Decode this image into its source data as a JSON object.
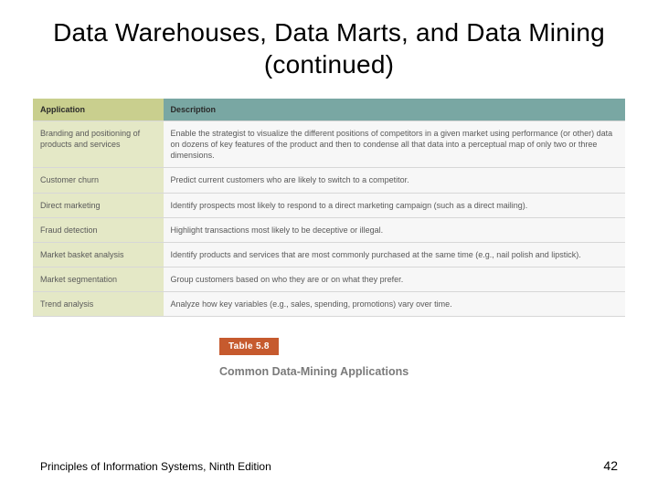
{
  "title": "Data Warehouses, Data Marts, and Data Mining (continued)",
  "columns": {
    "app": "Application",
    "desc": "Description"
  },
  "rows": [
    {
      "app": "Branding and positioning of products and services",
      "desc": "Enable the strategist to visualize the different positions of competitors in a given market using performance (or other) data on dozens of key features of the product and then to condense all that data into a perceptual map of only two or three dimensions."
    },
    {
      "app": "Customer churn",
      "desc": "Predict current customers who are likely to switch to a competitor."
    },
    {
      "app": "Direct marketing",
      "desc": "Identify prospects most likely to respond to a direct marketing campaign (such as a direct mailing)."
    },
    {
      "app": "Fraud detection",
      "desc": "Highlight transactions most likely to be deceptive or illegal."
    },
    {
      "app": "Market basket analysis",
      "desc": "Identify products and services that are most commonly purchased at the same time (e.g., nail polish and lipstick)."
    },
    {
      "app": "Market segmentation",
      "desc": "Group customers based on who they are or on what they prefer."
    },
    {
      "app": "Trend analysis",
      "desc": "Analyze how key variables (e.g., sales, spending, promotions) vary over time."
    }
  ],
  "badge": "Table 5.8",
  "caption": "Common Data-Mining Applications",
  "footer": {
    "left": "Principles of Information Systems, Ninth Edition",
    "page": "42"
  },
  "colors": {
    "hdr_app_bg": "#c9cf8e",
    "hdr_desc_bg": "#79a7a3",
    "cell_app_bg": "#e4e8c6",
    "cell_desc_bg": "#f7f7f7",
    "badge_bg": "#c65a2e",
    "badge_fg": "#ffffff",
    "caption_fg": "#7a7a7a",
    "border": "#d7d7d7"
  }
}
